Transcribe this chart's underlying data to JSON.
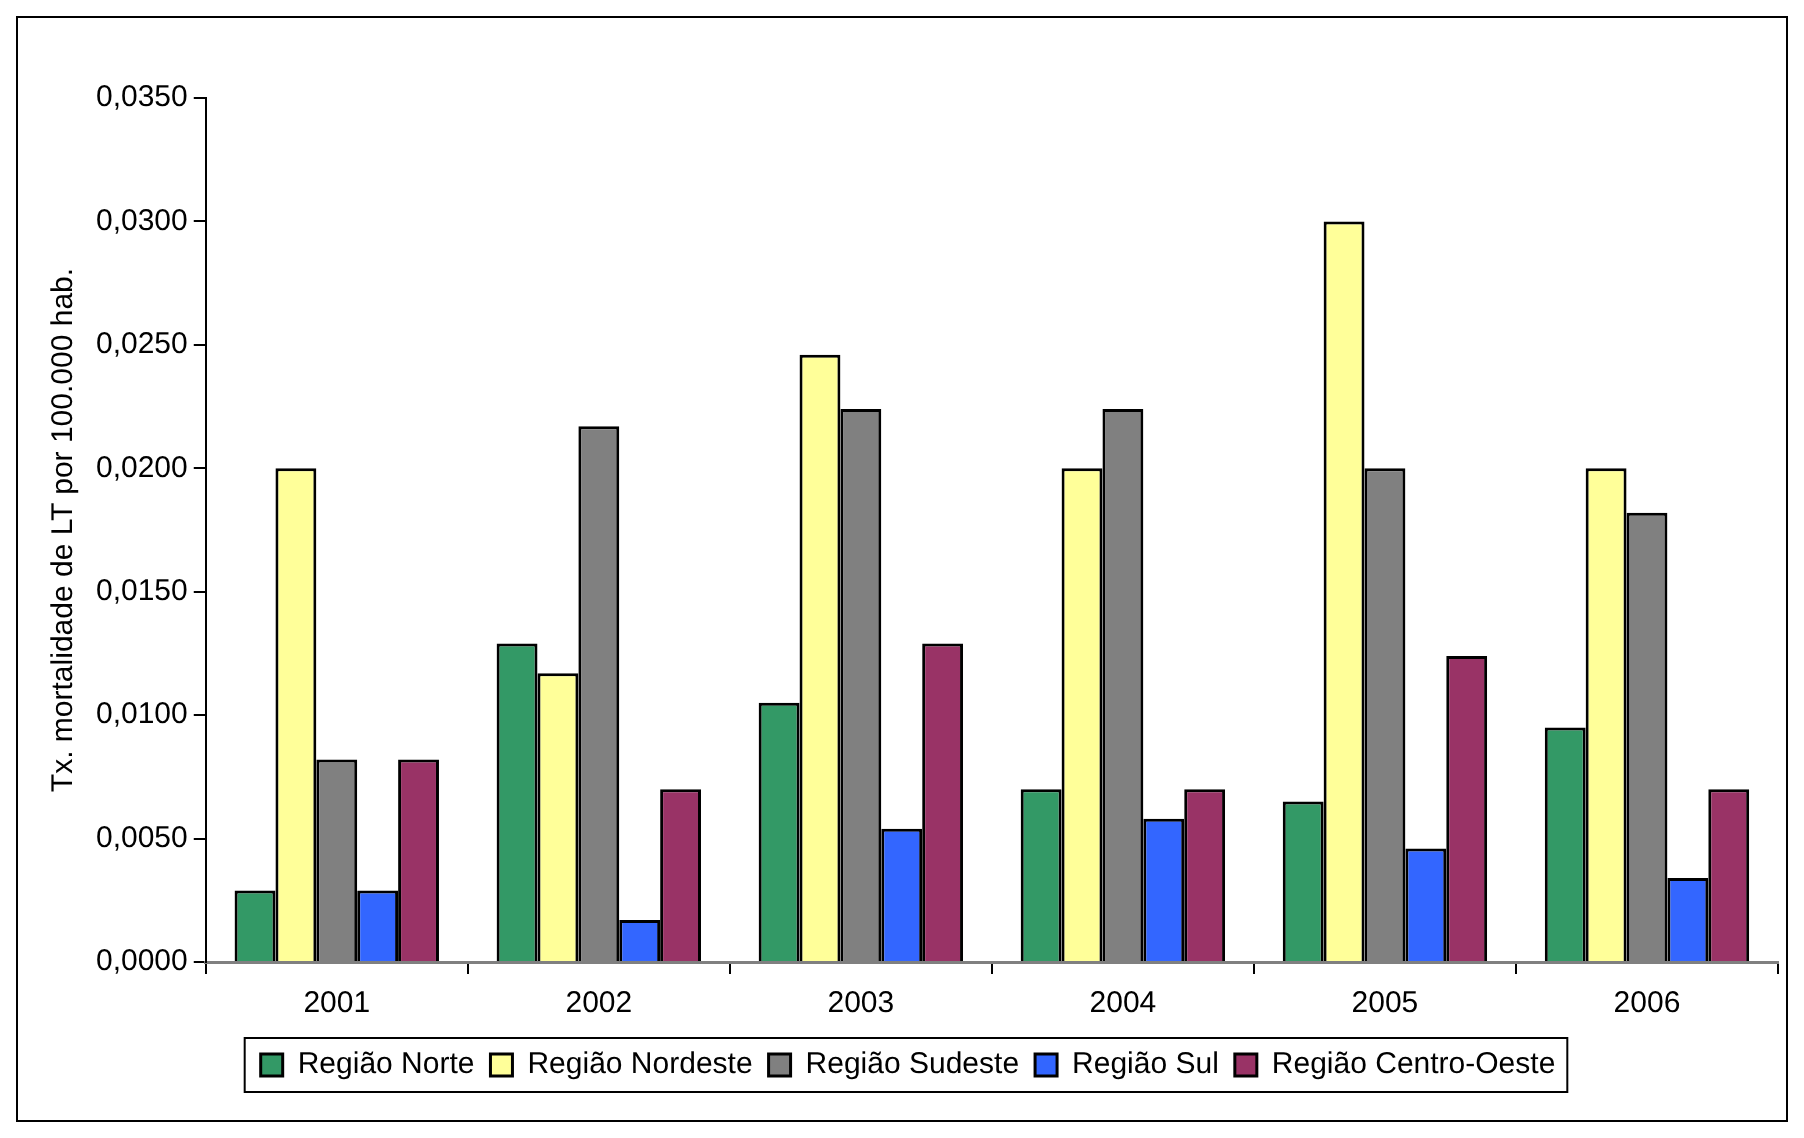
{
  "chart_data": {
    "type": "bar",
    "ylabel": "Tx. mortalidade de LT por 100.000 hab.",
    "categories": [
      "2001",
      "2002",
      "2003",
      "2004",
      "2005",
      "2006"
    ],
    "series": [
      {
        "name": "Região Norte",
        "color": "#339966",
        "values": [
          0.0029,
          0.0129,
          0.0105,
          0.007,
          0.0065,
          0.0095
        ]
      },
      {
        "name": "Região Nordeste",
        "color": "#ffff99",
        "values": [
          0.02,
          0.0117,
          0.0246,
          0.02,
          0.03,
          0.02
        ]
      },
      {
        "name": "Região Sudeste",
        "color": "#808080",
        "values": [
          0.0082,
          0.0217,
          0.0224,
          0.0224,
          0.02,
          0.0182
        ]
      },
      {
        "name": "Região Sul",
        "color": "#3366ff",
        "values": [
          0.0029,
          0.0017,
          0.0054,
          0.0058,
          0.0046,
          0.0034
        ]
      },
      {
        "name": "Região Centro-Oeste",
        "color": "#993366",
        "values": [
          0.0082,
          0.007,
          0.0129,
          0.007,
          0.0124,
          0.007
        ]
      }
    ],
    "ylim": [
      0,
      0.035
    ],
    "yticks": [
      {
        "value": 0,
        "label": "0,0000"
      },
      {
        "value": 0.005,
        "label": "0,0050"
      },
      {
        "value": 0.01,
        "label": "0,0100"
      },
      {
        "value": 0.015,
        "label": "0,0150"
      },
      {
        "value": 0.02,
        "label": "0,0200"
      },
      {
        "value": 0.025,
        "label": "0,0250"
      },
      {
        "value": 0.03,
        "label": "0,0300"
      },
      {
        "value": 0.035,
        "label": "0,0350"
      }
    ],
    "grid": false,
    "legend": "bottom"
  }
}
